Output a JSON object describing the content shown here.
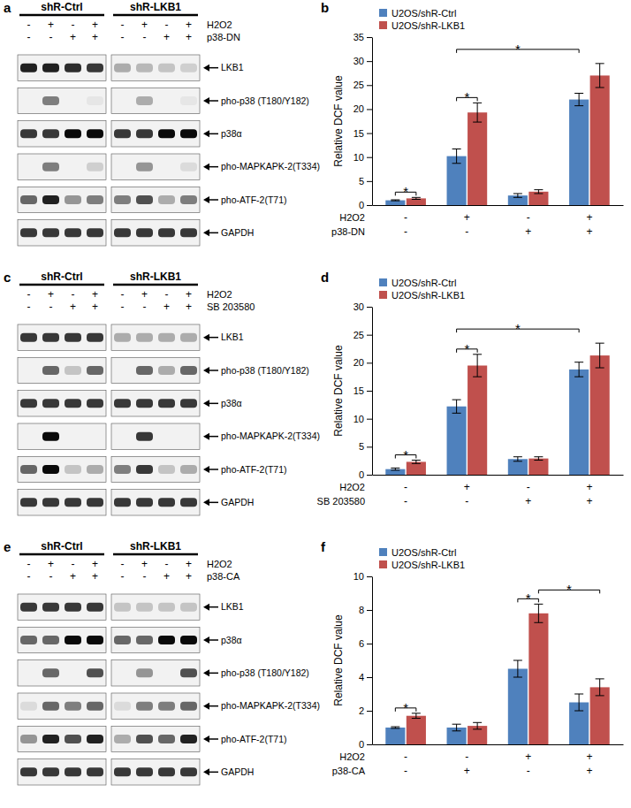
{
  "chart_data": [
    {
      "type": "bar",
      "title": "b",
      "ylabel": "Relative DCF value",
      "categories": [
        null,
        null,
        null,
        null
      ],
      "conditions": [
        {
          "label": "H2O2",
          "signs": [
            "-",
            "+",
            "-",
            "+"
          ]
        },
        {
          "label": "p38-DN",
          "signs": [
            "-",
            "-",
            "+",
            "+"
          ]
        }
      ],
      "series": [
        {
          "name": "U2OS/shR-Ctrl",
          "color": "#4f81bd",
          "values": [
            1,
            10.2,
            2,
            22
          ],
          "errors": [
            0.1,
            1.5,
            0.4,
            1.3
          ]
        },
        {
          "name": "U2OS/shR-LKB1",
          "color": "#c0504d",
          "values": [
            1.4,
            19.3,
            2.8,
            27
          ],
          "errors": [
            0.2,
            2,
            0.4,
            2.5
          ]
        }
      ],
      "ylim": [
        0,
        35
      ],
      "yticks": [
        0,
        5,
        10,
        15,
        20,
        25,
        30,
        35
      ],
      "legend": "top-left",
      "annotations": [
        {
          "text": "*",
          "series": [
            0,
            1
          ],
          "categories": [
            0,
            0
          ]
        },
        {
          "text": "*",
          "series": [
            0,
            1
          ],
          "categories": [
            1,
            1
          ]
        },
        {
          "text": "*",
          "series": [
            0,
            0
          ],
          "categories": [
            1,
            3
          ]
        }
      ]
    },
    {
      "type": "bar",
      "title": "d",
      "ylabel": "Relative DCF value",
      "categories": [
        null,
        null,
        null,
        null
      ],
      "conditions": [
        {
          "label": "H2O2",
          "signs": [
            "-",
            "+",
            "-",
            "+"
          ]
        },
        {
          "label": "SB 203580",
          "signs": [
            "-",
            "-",
            "+",
            "+"
          ]
        }
      ],
      "series": [
        {
          "name": "U2OS/shR-Ctrl",
          "color": "#4f81bd",
          "values": [
            1,
            12.2,
            2.8,
            18.8
          ],
          "errors": [
            0.2,
            1.2,
            0.4,
            1.3
          ]
        },
        {
          "name": "U2OS/shR-LKB1",
          "color": "#c0504d",
          "values": [
            2.3,
            19.5,
            2.9,
            21.3
          ],
          "errors": [
            0.3,
            2,
            0.3,
            2.2
          ]
        }
      ],
      "ylim": [
        0,
        30
      ],
      "yticks": [
        0,
        5,
        10,
        15,
        20,
        25,
        30
      ],
      "legend": "top-left",
      "annotations": [
        {
          "text": "*",
          "series": [
            0,
            1
          ],
          "categories": [
            0,
            0
          ]
        },
        {
          "text": "*",
          "series": [
            0,
            1
          ],
          "categories": [
            1,
            1
          ]
        },
        {
          "text": "*",
          "series": [
            0,
            0
          ],
          "categories": [
            1,
            3
          ]
        }
      ]
    },
    {
      "type": "bar",
      "title": "f",
      "ylabel": "Relative DCF value",
      "categories": [
        null,
        null,
        null,
        null
      ],
      "conditions": [
        {
          "label": "H2O2",
          "signs": [
            "-",
            "-",
            "+",
            "+"
          ]
        },
        {
          "label": "p38-CA",
          "signs": [
            "-",
            "+",
            "-",
            "+"
          ]
        }
      ],
      "series": [
        {
          "name": "U2OS/shR-Ctrl",
          "color": "#4f81bd",
          "values": [
            1,
            1,
            4.5,
            2.5
          ],
          "errors": [
            0.05,
            0.2,
            0.5,
            0.5
          ]
        },
        {
          "name": "U2OS/shR-LKB1",
          "color": "#c0504d",
          "values": [
            1.7,
            1.1,
            7.8,
            3.4
          ],
          "errors": [
            0.15,
            0.2,
            0.55,
            0.5
          ]
        }
      ],
      "ylim": [
        0,
        10
      ],
      "yticks": [
        0,
        2,
        4,
        6,
        8,
        10
      ],
      "legend": "top-left",
      "annotations": [
        {
          "text": "*",
          "series": [
            0,
            1
          ],
          "categories": [
            0,
            0
          ]
        },
        {
          "text": "*",
          "series": [
            0,
            1
          ],
          "categories": [
            2,
            2
          ]
        },
        {
          "text": "*",
          "series": [
            1,
            1
          ],
          "categories": [
            2,
            3
          ]
        }
      ]
    }
  ],
  "blots": [
    {
      "panel": "a",
      "groups": [
        "shR-Ctrl",
        "shR-LKB1"
      ],
      "intensity_lim": [
        0,
        1
      ],
      "conditions": [
        {
          "label": "H2O2",
          "signs": [
            "-",
            "+",
            "-",
            "+",
            "-",
            "+",
            "-",
            "+"
          ]
        },
        {
          "label": "p38-DN",
          "signs": [
            "-",
            "-",
            "+",
            "+",
            "-",
            "-",
            "+",
            "+"
          ]
        }
      ],
      "rows": [
        {
          "label": "LKB1",
          "intensity": [
            0.9,
            0.9,
            0.85,
            0.8,
            0.3,
            0.25,
            0.2,
            0.15
          ]
        },
        {
          "label": "pho-p38 (T180/Y182)",
          "intensity": [
            0,
            0.5,
            0,
            0.05,
            0,
            0.3,
            0,
            0.05
          ]
        },
        {
          "label": "p38α",
          "intensity": [
            0.8,
            0.8,
            1,
            1,
            0.8,
            0.8,
            1,
            1
          ]
        },
        {
          "label": "pho-MAPKAPK-2(T334)",
          "intensity": [
            0,
            0.5,
            0,
            0.15,
            0,
            0.4,
            0,
            0.1
          ]
        },
        {
          "label": "pho-ATF-2(T71)",
          "intensity": [
            0.6,
            0.9,
            0.4,
            0.5,
            0.5,
            0.7,
            0.3,
            0.5
          ]
        },
        {
          "label": "GAPDH",
          "intensity": [
            0.8,
            0.8,
            0.8,
            0.8,
            0.8,
            0.8,
            0.8,
            0.8
          ]
        }
      ]
    },
    {
      "panel": "c",
      "groups": [
        "shR-Ctrl",
        "shR-LKB1"
      ],
      "intensity_lim": [
        0,
        1
      ],
      "conditions": [
        {
          "label": "H2O2",
          "signs": [
            "-",
            "+",
            "-",
            "+",
            "-",
            "+",
            "-",
            "+"
          ]
        },
        {
          "label": "SB 203580",
          "signs": [
            "-",
            "-",
            "+",
            "+",
            "-",
            "-",
            "+",
            "+"
          ]
        }
      ],
      "rows": [
        {
          "label": "LKB1",
          "intensity": [
            0.8,
            0.8,
            0.8,
            0.8,
            0.3,
            0.3,
            0.3,
            0.3
          ]
        },
        {
          "label": "pho-p38 (T180/Y182)",
          "intensity": [
            0,
            0.6,
            0.2,
            0.6,
            0,
            0.6,
            0.3,
            0.6
          ]
        },
        {
          "label": "p38α",
          "intensity": [
            0.8,
            0.8,
            0.8,
            0.8,
            0.8,
            0.8,
            0.8,
            0.8
          ]
        },
        {
          "label": "pho-MAPKAPK-2(T334)",
          "intensity": [
            0,
            1,
            0,
            0,
            0,
            0.8,
            0,
            0
          ]
        },
        {
          "label": "pho-ATF-2(T71)",
          "intensity": [
            0.6,
            1,
            0.2,
            0.3,
            0.5,
            0.8,
            0.2,
            0.3
          ]
        },
        {
          "label": "GAPDH",
          "intensity": [
            0.8,
            0.8,
            0.8,
            0.8,
            0.8,
            0.8,
            0.8,
            0.8
          ]
        }
      ]
    },
    {
      "panel": "e",
      "groups": [
        "shR-Ctrl",
        "shR-LKB1"
      ],
      "intensity_lim": [
        0,
        1
      ],
      "conditions": [
        {
          "label": "H2O2",
          "signs": [
            "-",
            "+",
            "-",
            "+",
            "-",
            "+",
            "-",
            "+"
          ]
        },
        {
          "label": "p38-CA",
          "signs": [
            "-",
            "-",
            "+",
            "+",
            "-",
            "-",
            "+",
            "+"
          ]
        }
      ],
      "rows": [
        {
          "label": "LKB1",
          "intensity": [
            0.8,
            0.8,
            0.8,
            0.8,
            0.2,
            0.2,
            0.2,
            0.2
          ]
        },
        {
          "label": "p38α",
          "intensity": [
            0.6,
            0.6,
            1,
            1,
            0.6,
            0.6,
            1,
            1
          ]
        },
        {
          "label": "pho-p38 (T180/Y182)",
          "intensity": [
            0,
            0.6,
            0,
            0.7,
            0,
            0.4,
            0,
            0.7
          ]
        },
        {
          "label": "pho-MAPKAPK-2(T334)",
          "intensity": [
            0.1,
            0.6,
            0.5,
            0.6,
            0.1,
            0.5,
            0.5,
            0.6
          ]
        },
        {
          "label": "pho-ATF-2(T71)",
          "intensity": [
            0.4,
            0.9,
            0.7,
            0.9,
            0.3,
            0.7,
            0.6,
            0.9
          ]
        },
        {
          "label": "GAPDH",
          "intensity": [
            0.8,
            0.8,
            0.8,
            0.8,
            0.8,
            0.8,
            0.8,
            0.8
          ]
        }
      ]
    }
  ]
}
